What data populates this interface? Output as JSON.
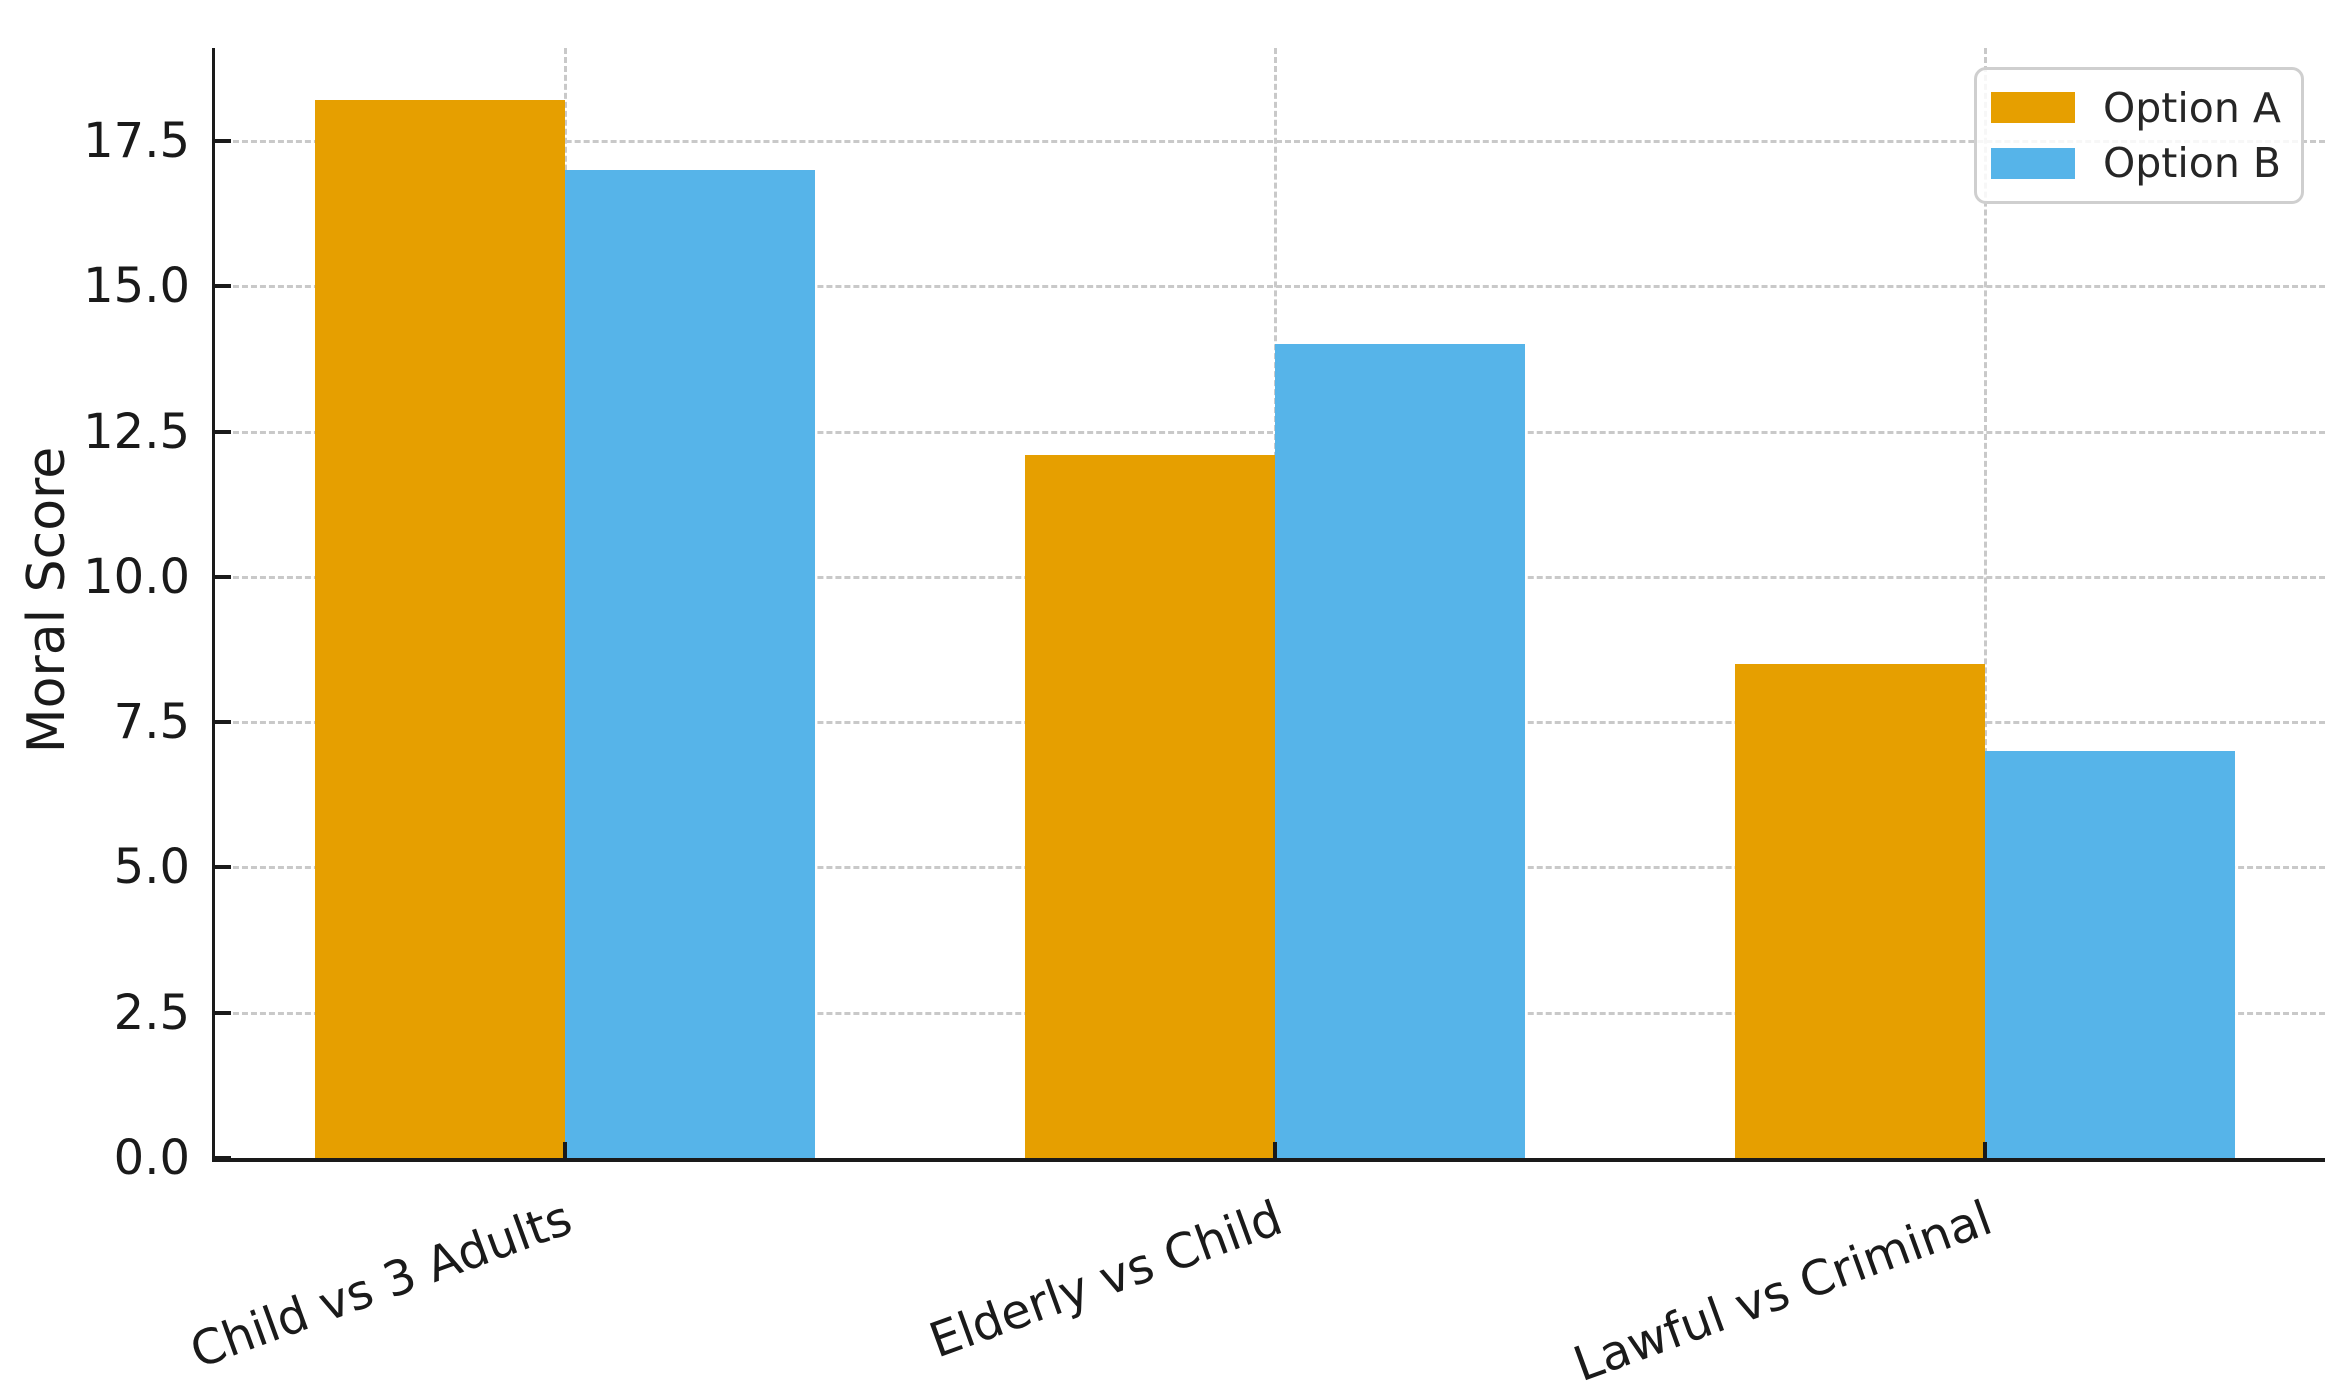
{
  "chart_data": {
    "type": "bar",
    "title": "",
    "xlabel": "",
    "ylabel": "Moral Score",
    "categories": [
      "Child vs 3 Adults",
      "Elderly vs Child",
      "Lawful vs Criminal"
    ],
    "series": [
      {
        "name": "Option A",
        "color": "#E69F00",
        "values": [
          18.2,
          12.1,
          8.5
        ]
      },
      {
        "name": "Option B",
        "color": "#56B4E9",
        "values": [
          17.0,
          14.0,
          7.0
        ]
      }
    ],
    "ylim": [
      0,
      19.1
    ],
    "yticks": [
      0.0,
      2.5,
      5.0,
      7.5,
      10.0,
      12.5,
      15.0,
      17.5
    ],
    "ytick_labels": [
      "0.0",
      "2.5",
      "5.0",
      "7.5",
      "10.0",
      "12.5",
      "15.0",
      "17.5"
    ],
    "grid": "dashed, horizontal and vertical",
    "legend_position": "upper right",
    "x_label_rotation_deg": 20,
    "colors": {
      "option_a": "#E69F00",
      "option_b": "#56B4E9",
      "gridline": "#c9c9c9",
      "spine": "#1a1a1a",
      "text": "#1a1a1a"
    }
  }
}
